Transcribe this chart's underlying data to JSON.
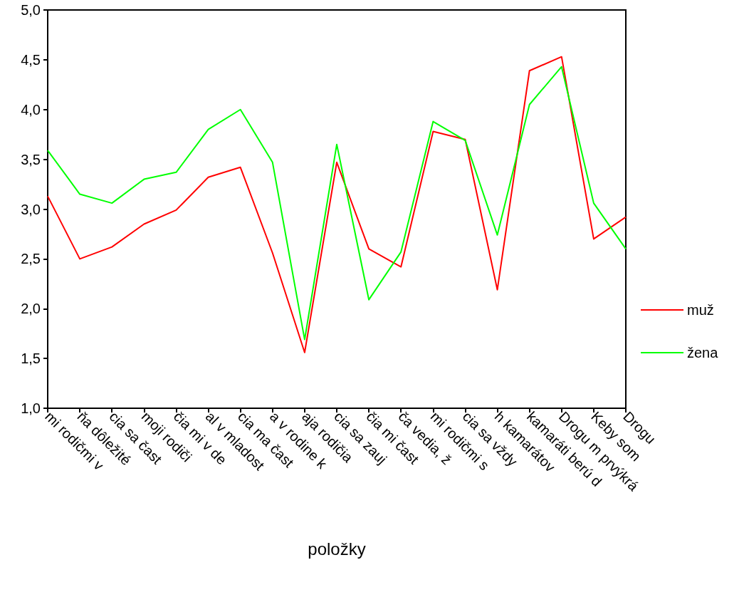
{
  "chart_data": {
    "type": "line",
    "xlabel": "položky",
    "categories": [
      "mi rodičmi v",
      "ňa dôležité",
      "cia sa čast",
      "moji rodiči",
      "čia mi v de",
      "al v mladost",
      "cia ma čast",
      "a v rodine k",
      "aja rodičia",
      "cia sa zauj",
      "čia mi čast",
      "ča vedia, ž",
      "mi rodičmi s",
      "cia sa vždy",
      "h kamarátov",
      "kamaráti berú d",
      "Drogu m prvýkrá",
      "Keby som",
      "Drogu"
    ],
    "series": [
      {
        "name": "muž",
        "color": "#ff0000",
        "values": [
          3.13,
          2.5,
          2.62,
          2.85,
          2.99,
          3.32,
          3.42,
          2.56,
          1.56,
          3.47,
          2.6,
          2.42,
          3.78,
          3.7,
          2.19,
          4.39,
          4.53,
          2.7,
          2.92
        ]
      },
      {
        "name": "žena",
        "color": "#00ff00",
        "values": [
          3.59,
          3.15,
          3.06,
          3.3,
          3.37,
          3.8,
          4.0,
          3.47,
          1.69,
          3.65,
          2.09,
          2.57,
          3.88,
          3.69,
          2.74,
          4.05,
          4.43,
          3.06,
          2.6
        ]
      }
    ],
    "ylim": [
      1,
      5
    ],
    "yticks": [
      {
        "value": 1,
        "label": "1,0"
      },
      {
        "value": 1.5,
        "label": "1,5"
      },
      {
        "value": 2,
        "label": "2,0"
      },
      {
        "value": 2.5,
        "label": "2,5"
      },
      {
        "value": 3,
        "label": "3,0"
      },
      {
        "value": 3.5,
        "label": "3,5"
      },
      {
        "value": 4,
        "label": "4,0"
      },
      {
        "value": 4.5,
        "label": "4,5"
      },
      {
        "value": 5,
        "label": "5,0"
      }
    ],
    "grid": false,
    "legend": "right",
    "marker": "none",
    "line_style": "solid"
  }
}
